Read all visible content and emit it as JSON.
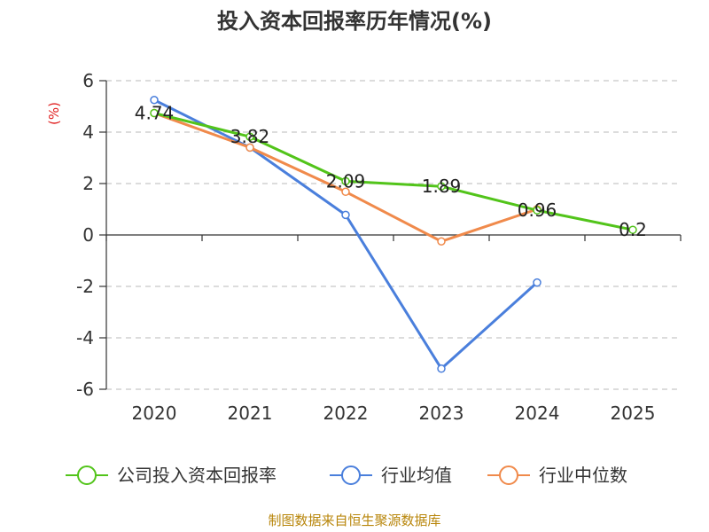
{
  "chart_data": {
    "type": "line",
    "title": "投入资本回报率历年情况(%)",
    "ylabel": "(%)",
    "xlabel": "",
    "categories": [
      "2020",
      "2021",
      "2022",
      "2023",
      "2024",
      "2025"
    ],
    "ylim": [
      -6,
      6
    ],
    "yticks": [
      6,
      4,
      2,
      0,
      -2,
      -4,
      -6
    ],
    "grid": true,
    "legend_position": "bottom",
    "series": [
      {
        "name": "公司投入资本回报率",
        "color": "#52c41a",
        "values": [
          4.74,
          3.82,
          2.09,
          1.89,
          0.96,
          0.2
        ],
        "labels": [
          "4.74",
          "3.82",
          "2.09",
          "1.89",
          "0.96",
          "0.2"
        ]
      },
      {
        "name": "行业均值",
        "color": "#4a7fdc",
        "values": [
          5.25,
          3.4,
          0.78,
          -5.2,
          -1.85,
          null
        ]
      },
      {
        "name": "行业中位数",
        "color": "#f08a4b",
        "values": [
          4.74,
          3.4,
          1.68,
          -0.25,
          1.0,
          null
        ]
      }
    ]
  },
  "source": "制图数据来自恒生聚源数据库"
}
